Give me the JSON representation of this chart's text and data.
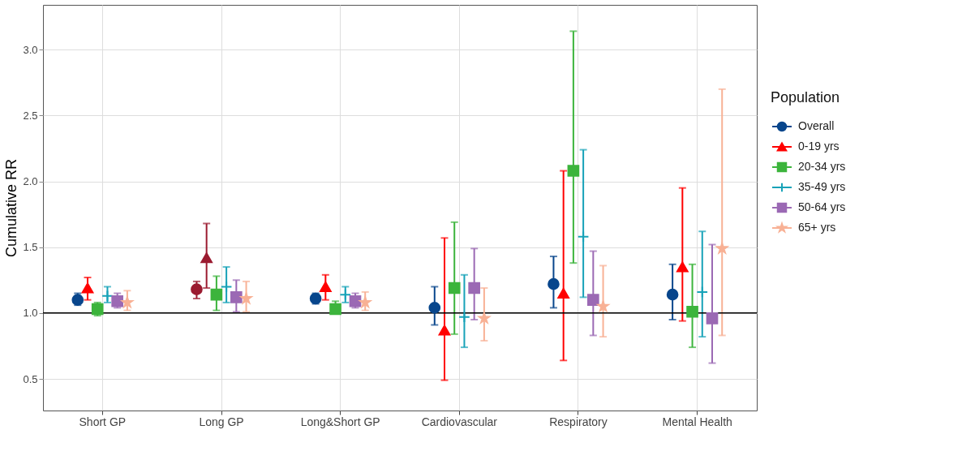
{
  "chart_data": {
    "type": "scatter",
    "ylabel": "Cumulative RR",
    "legend_title": "Population",
    "categories": [
      "Short GP",
      "Long GP",
      "Long&Short GP",
      "Cardiovascular",
      "Respiratory",
      "Mental Health"
    ],
    "ylim": [
      0.26,
      3.34
    ],
    "yticks": [
      0.5,
      {
        "value": 1,
        "label": "1.0"
      },
      1.5,
      {
        "value": 2,
        "label": "2.0"
      },
      2.5,
      {
        "value": 3,
        "label": "3.0"
      }
    ],
    "grid": true,
    "legend": "right",
    "ref_lines": [
      {
        "axis": "y",
        "value": 1.0,
        "color": "#000000"
      }
    ],
    "series": [
      {
        "name": "Overall",
        "color": "#08468c",
        "marker": "circle",
        "colors": [
          "#08468c",
          "#9b1b30",
          "#08468c",
          "#08468c",
          "#08468c",
          "#08468c"
        ],
        "values": [
          1.1,
          1.18,
          1.11,
          1.04,
          1.22,
          1.14
        ],
        "errors": [
          [
            1.06,
            1.15
          ],
          [
            1.11,
            1.24
          ],
          [
            1.07,
            1.15
          ],
          [
            0.91,
            1.2
          ],
          [
            1.04,
            1.43
          ],
          [
            0.95,
            1.37
          ]
        ]
      },
      {
        "name": "0-19 yrs",
        "color": "#ff0000",
        "marker": "triangle",
        "colors": [
          "#ff0000",
          "#9b1b30",
          "#ff0000",
          "#ff0000",
          "#ff0000",
          "#ff0000"
        ],
        "values": [
          1.19,
          1.42,
          1.2,
          0.87,
          1.15,
          1.35
        ],
        "errors": [
          [
            1.1,
            1.27
          ],
          [
            1.19,
            1.68
          ],
          [
            1.1,
            1.29
          ],
          [
            0.49,
            1.57
          ],
          [
            0.64,
            2.08
          ],
          [
            0.94,
            1.95
          ]
        ]
      },
      {
        "name": "20-34 yrs",
        "color": "#3cb43c",
        "marker": "square",
        "values": [
          1.03,
          1.14,
          1.03,
          1.19,
          2.08,
          1.01
        ],
        "errors": [
          [
            0.98,
            1.08
          ],
          [
            1.02,
            1.28
          ],
          [
            1.0,
            1.09
          ],
          [
            0.84,
            1.69
          ],
          [
            1.38,
            3.14
          ],
          [
            0.74,
            1.37
          ]
        ]
      },
      {
        "name": "35-49 yrs",
        "color": "#17a2b8",
        "marker": "cross",
        "values": [
          1.13,
          1.2,
          1.14,
          0.97,
          1.58,
          1.16
        ],
        "errors": [
          [
            1.08,
            1.2
          ],
          [
            1.08,
            1.35
          ],
          [
            1.08,
            1.2
          ],
          [
            0.74,
            1.29
          ],
          [
            1.12,
            2.24
          ],
          [
            0.82,
            1.62
          ]
        ]
      },
      {
        "name": "50-64 yrs",
        "color": "#9b69b4",
        "marker": "square",
        "values": [
          1.09,
          1.12,
          1.09,
          1.19,
          1.1,
          0.96
        ],
        "errors": [
          [
            1.04,
            1.15
          ],
          [
            1.01,
            1.25
          ],
          [
            1.04,
            1.15
          ],
          [
            0.95,
            1.49
          ],
          [
            0.83,
            1.47
          ],
          [
            0.62,
            1.52
          ]
        ]
      },
      {
        "name": "65+ yrs",
        "color": "#f8b195",
        "marker": "star",
        "values": [
          1.08,
          1.11,
          1.08,
          0.96,
          1.05,
          1.49
        ],
        "errors": [
          [
            1.02,
            1.17
          ],
          [
            1.01,
            1.24
          ],
          [
            1.02,
            1.16
          ],
          [
            0.79,
            1.19
          ],
          [
            0.82,
            1.36
          ],
          [
            0.83,
            2.7
          ]
        ]
      }
    ]
  }
}
